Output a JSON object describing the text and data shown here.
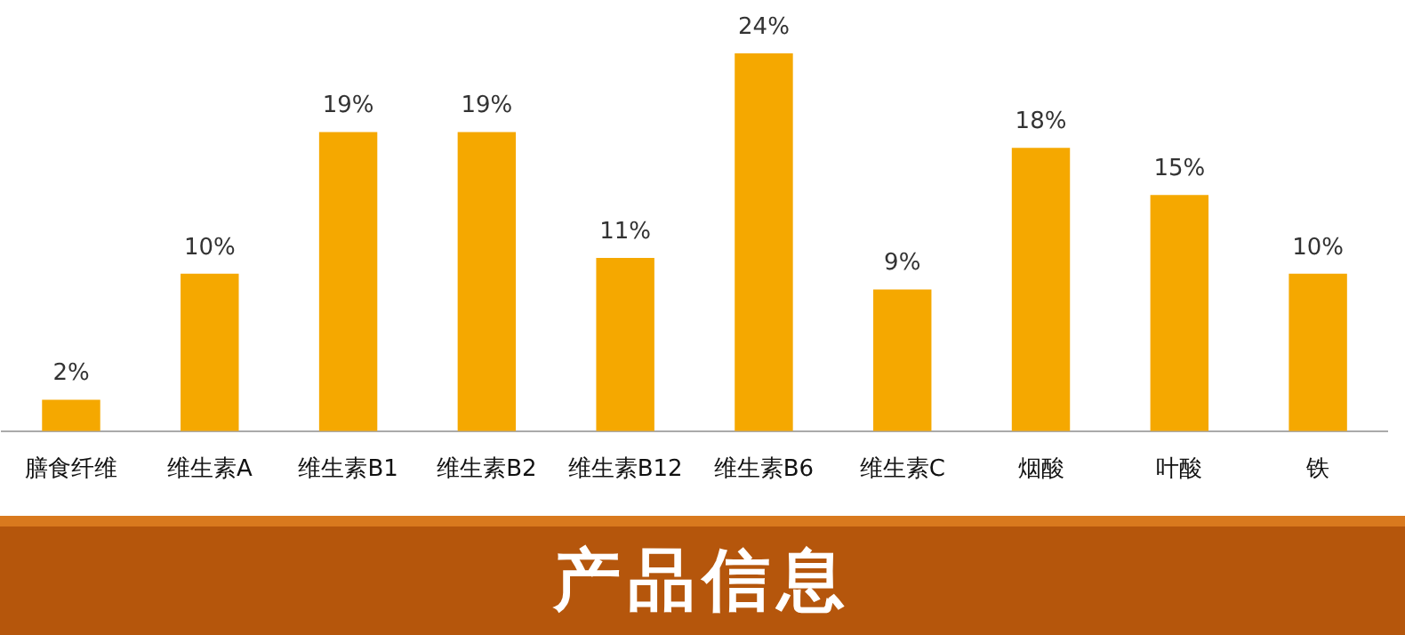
{
  "chart_data": {
    "type": "bar",
    "title": "产品信息",
    "categories": [
      "膳食纤维",
      "维生素A",
      "维生素B1",
      "维生素B2",
      "维生素B12",
      "维生素B6",
      "维生素C",
      "烟酸",
      "叶酸",
      "铁"
    ],
    "values": [
      2,
      10,
      19,
      19,
      11,
      24,
      9,
      18,
      15,
      10
    ],
    "value_labels": [
      "2%",
      "10%",
      "19%",
      "19%",
      "11%",
      "24%",
      "9%",
      "18%",
      "15%",
      "10%"
    ],
    "color": "#f5a800",
    "grid": false,
    "legend": false
  }
}
